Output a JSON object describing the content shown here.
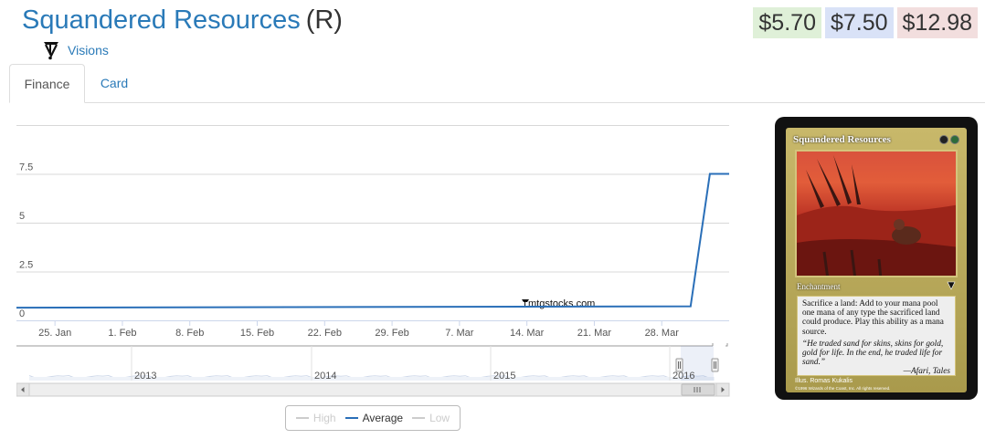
{
  "header": {
    "card_name": "Squandered Resources",
    "rarity": "(R)",
    "set_name": "Visions"
  },
  "prices": {
    "low": "$5.70",
    "average": "$7.50",
    "high": "$12.98",
    "colors": {
      "low": "#dff0d8",
      "average": "#d9e2f7",
      "high": "#f2dede"
    }
  },
  "tabs": [
    {
      "label": "Finance",
      "active": true
    },
    {
      "label": "Card",
      "active": false
    }
  ],
  "chart_data": {
    "type": "line",
    "y_ticks": [
      "0",
      "2.5",
      "5",
      "7.5"
    ],
    "ylim": [
      0,
      10
    ],
    "x_ticks": [
      "25. Jan",
      "1. Feb",
      "8. Feb",
      "15. Feb",
      "22. Feb",
      "29. Feb",
      "7. Mar",
      "14. Mar",
      "21. Mar",
      "28. Mar"
    ],
    "watermark": "mtgstocks.com",
    "series": [
      {
        "name": "Average",
        "color": "#2a6fb8",
        "x": [
          "2016-01-21",
          "2016-03-31",
          "2016-04-02",
          "2016-04-04"
        ],
        "y": [
          0.65,
          0.72,
          7.5,
          7.5
        ]
      }
    ],
    "navigator": {
      "year_labels": [
        "2013",
        "2014",
        "2015",
        "2016"
      ]
    },
    "legend": [
      {
        "label": "High",
        "enabled": false
      },
      {
        "label": "Average",
        "enabled": true
      },
      {
        "label": "Low",
        "enabled": false
      }
    ],
    "grid": true
  },
  "card": {
    "name": "Squandered Resources",
    "type_line": "Enchantment",
    "rules_text": "Sacrifice a land: Add to your mana pool one mana of any type the sacrificed land could produce. Play this ability as a mana source.",
    "flavor_text": "“He traded sand for skins, skins for gold, gold for life. In the end, he traded life for sand.”",
    "flavor_attribution": "—Afari, Tales",
    "illustrator": "Illus. Romas Kukalis",
    "copyright": "©1996 Wizards of the Coast, Inc. All rights reserved."
  }
}
